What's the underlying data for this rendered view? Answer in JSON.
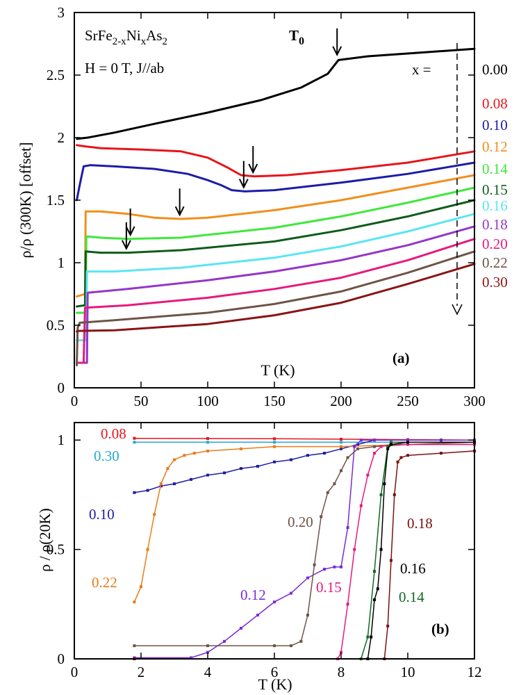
{
  "chart_data": [
    {
      "type": "line",
      "panel_label": "(a)",
      "title_lines": [
        "SrFe2-xNixAs2",
        "H = 0 T, J//ab"
      ],
      "compound": {
        "base": "SrFe",
        "sub1": "2-x",
        "mid": "Ni",
        "sub2": "x",
        "tail": "As",
        "sub3": "2"
      },
      "conditions": "H = 0 T, J//ab",
      "xlabel": "T (K)",
      "ylabel": "ρ/ρ (300K) [offset]",
      "xlim": [
        0,
        300
      ],
      "ylim": [
        0,
        3
      ],
      "xticks": [
        0,
        50,
        100,
        150,
        200,
        250,
        300
      ],
      "yticks": [
        0,
        0.5,
        1,
        1.5,
        2,
        2.5,
        3
      ],
      "ytick_labels": [
        "0",
        "0.5",
        "1",
        "1.5",
        "2",
        "2.5",
        "3"
      ],
      "legend_header": "x =",
      "transition_label": {
        "main": "T",
        "sub": "0"
      },
      "series": [
        {
          "name": "0.00",
          "color": "#000000",
          "x": [
            2,
            10,
            30,
            60,
            100,
            140,
            170,
            190,
            198,
            220,
            260,
            300
          ],
          "y": [
            1.99,
            2.0,
            2.04,
            2.11,
            2.2,
            2.3,
            2.4,
            2.51,
            2.62,
            2.65,
            2.68,
            2.71
          ]
        },
        {
          "name": "0.08",
          "color": "#e8141a",
          "x": [
            1.8,
            8,
            20,
            50,
            80,
            100,
            115,
            125,
            135,
            160,
            200,
            250,
            300
          ],
          "y": [
            1.94,
            1.93,
            1.915,
            1.905,
            1.89,
            1.84,
            1.76,
            1.7,
            1.69,
            1.7,
            1.74,
            1.8,
            1.89
          ]
        },
        {
          "name": "0.10",
          "color": "#1c1ca8",
          "x": [
            1.8,
            4,
            7,
            12,
            30,
            60,
            85,
            100,
            110,
            118,
            128,
            150,
            200,
            250,
            300
          ],
          "y": [
            1.5,
            1.62,
            1.77,
            1.78,
            1.77,
            1.75,
            1.71,
            1.66,
            1.62,
            1.58,
            1.57,
            1.58,
            1.64,
            1.71,
            1.8
          ]
        },
        {
          "name": "0.12",
          "color": "#f28e1c",
          "x": [
            1.8,
            8,
            8.5,
            20,
            40,
            60,
            80,
            100,
            150,
            200,
            250,
            300
          ],
          "y": [
            0.73,
            0.75,
            1.41,
            1.41,
            1.39,
            1.36,
            1.35,
            1.36,
            1.42,
            1.5,
            1.6,
            1.7
          ]
        },
        {
          "name": "0.14",
          "color": "#3ee83a",
          "x": [
            1.8,
            8.5,
            9.0,
            20,
            40,
            80,
            150,
            200,
            250,
            300
          ],
          "y": [
            0.6,
            0.6,
            1.21,
            1.2,
            1.19,
            1.2,
            1.28,
            1.37,
            1.48,
            1.6
          ]
        },
        {
          "name": "0.15",
          "color": "#0e5c1a",
          "x": [
            1.8,
            8,
            8.5,
            20,
            40,
            80,
            150,
            200,
            250,
            300
          ],
          "y": [
            0.65,
            0.66,
            1.09,
            1.08,
            1.08,
            1.1,
            1.17,
            1.26,
            1.37,
            1.5
          ]
        },
        {
          "name": "0.16",
          "color": "#5ae6f2",
          "x": [
            1.8,
            9.0,
            9.5,
            30,
            80,
            150,
            200,
            250,
            300
          ],
          "y": [
            0.38,
            0.38,
            0.93,
            0.93,
            0.96,
            1.04,
            1.13,
            1.25,
            1.39
          ]
        },
        {
          "name": "0.18",
          "color": "#9436c8",
          "x": [
            1.8,
            9.5,
            10,
            40,
            100,
            150,
            200,
            250,
            300
          ],
          "y": [
            0.2,
            0.2,
            0.76,
            0.79,
            0.86,
            0.93,
            1.02,
            1.14,
            1.29
          ]
        },
        {
          "name": "0.20",
          "color": "#e6197e",
          "x": [
            1.8,
            7,
            8,
            40,
            100,
            150,
            200,
            250,
            300
          ],
          "y": [
            0.2,
            0.2,
            0.64,
            0.66,
            0.72,
            0.79,
            0.88,
            1.02,
            1.19
          ]
        },
        {
          "name": "0.22",
          "color": "#6e5446",
          "x": [
            1.8,
            2.5,
            4,
            30,
            100,
            150,
            200,
            250,
            300
          ],
          "y": [
            0.18,
            0.48,
            0.52,
            0.54,
            0.6,
            0.67,
            0.77,
            0.92,
            1.09
          ]
        },
        {
          "name": "0.30",
          "color": "#8a1414",
          "x": [
            1.8,
            3,
            30,
            100,
            150,
            200,
            250,
            300
          ],
          "y": [
            0.45,
            0.455,
            0.46,
            0.51,
            0.58,
            0.68,
            0.83,
            0.99
          ]
        }
      ],
      "arrows": [
        {
          "x": 197,
          "y": 2.64
        },
        {
          "x": 134,
          "y": 1.7
        },
        {
          "x": 127,
          "y": 1.58
        },
        {
          "x": 79,
          "y": 1.36
        },
        {
          "x": 42,
          "y": 1.2
        },
        {
          "x": 39,
          "y": 1.09
        }
      ]
    },
    {
      "type": "line",
      "panel_label": "(b)",
      "xlabel": "T (K)",
      "ylabel": "ρ / ρ(20K)",
      "xlim": [
        0,
        12
      ],
      "ylim": [
        0,
        1.08
      ],
      "xticks": [
        0,
        2,
        4,
        6,
        8,
        10,
        12
      ],
      "yticks": [
        0,
        0.5,
        1
      ],
      "ytick_labels": [
        "0",
        "0.5",
        "1"
      ],
      "series": [
        {
          "name": "0.08",
          "color": "#e8141a",
          "x": [
            1.8,
            4,
            6,
            8,
            10,
            12
          ],
          "y": [
            1.008,
            1.007,
            1.006,
            1.004,
            1.002,
            1.0
          ]
        },
        {
          "name": "0.30",
          "color": "#22aad6",
          "x": [
            1.8,
            4,
            6,
            8,
            10,
            12
          ],
          "y": [
            0.99,
            0.99,
            0.99,
            0.99,
            0.99,
            0.99
          ]
        },
        {
          "name": "0.10",
          "color": "#1c1ca8",
          "x": [
            1.8,
            2.2,
            2.6,
            3,
            3.5,
            4,
            4.5,
            5,
            5.5,
            6,
            6.5,
            7,
            7.5,
            8,
            8.5,
            9,
            10,
            11,
            12
          ],
          "y": [
            0.76,
            0.77,
            0.79,
            0.8,
            0.82,
            0.84,
            0.85,
            0.87,
            0.88,
            0.9,
            0.91,
            0.93,
            0.94,
            0.96,
            0.98,
            1.0,
            1.0,
            1.0,
            1.0
          ]
        },
        {
          "name": "0.22",
          "color": "#ec7a18",
          "x": [
            1.8,
            2.0,
            2.2,
            2.4,
            2.6,
            2.8,
            3.0,
            3.3,
            3.6,
            4,
            5,
            6,
            8,
            10,
            12
          ],
          "y": [
            0.26,
            0.33,
            0.5,
            0.66,
            0.8,
            0.87,
            0.91,
            0.93,
            0.94,
            0.95,
            0.96,
            0.97,
            0.97,
            0.98,
            0.98
          ]
        },
        {
          "name": "0.12",
          "color": "#7a2ad8",
          "x": [
            1.8,
            3.5,
            4.0,
            4.5,
            5.0,
            5.5,
            6.0,
            6.5,
            7.0,
            7.5,
            7.8,
            8.0,
            8.2,
            8.4,
            8.6,
            9,
            10,
            12
          ],
          "y": [
            0.005,
            0.005,
            0.03,
            0.08,
            0.14,
            0.2,
            0.26,
            0.3,
            0.37,
            0.41,
            0.42,
            0.42,
            0.6,
            0.97,
            1.0,
            1.0,
            1.0,
            1.0
          ]
        },
        {
          "name": "0.20",
          "color": "#6e5446",
          "x": [
            1.8,
            4,
            6,
            6.5,
            6.8,
            7.0,
            7.2,
            7.4,
            7.6,
            7.8,
            8.0,
            8.2,
            8.5,
            9,
            10,
            12
          ],
          "y": [
            0.06,
            0.06,
            0.06,
            0.06,
            0.08,
            0.2,
            0.43,
            0.65,
            0.76,
            0.8,
            0.86,
            0.92,
            0.96,
            0.97,
            0.98,
            0.99
          ]
        },
        {
          "name": "0.15",
          "color": "#e6197e",
          "x": [
            1.8,
            7.9,
            8.0,
            8.2,
            8.4,
            8.6,
            8.8,
            9.0,
            9.2,
            9.5,
            10,
            12
          ],
          "y": [
            0.0,
            0.0,
            0.03,
            0.25,
            0.5,
            0.7,
            0.84,
            0.94,
            0.97,
            0.98,
            0.98,
            0.98
          ]
        },
        {
          "name": "0.14",
          "color": "#0e6a1e",
          "x": [
            1.8,
            8.6,
            8.8,
            9.0,
            9.2,
            9.4,
            9.5,
            10,
            12
          ],
          "y": [
            0.0,
            0.0,
            0.1,
            0.4,
            0.75,
            0.97,
            0.99,
            0.99,
            0.99
          ]
        },
        {
          "name": "0.16",
          "color": "#000000",
          "x": [
            1.8,
            8.8,
            8.9,
            9.0,
            9.1,
            9.2,
            9.3,
            9.4,
            9.5,
            10,
            12
          ],
          "y": [
            0.0,
            0.0,
            0.1,
            0.27,
            0.32,
            0.5,
            0.8,
            0.96,
            0.98,
            0.99,
            0.99
          ]
        },
        {
          "name": "0.18",
          "color": "#7a1010",
          "x": [
            1.8,
            9.3,
            9.4,
            9.5,
            9.6,
            9.7,
            9.8,
            10,
            11,
            12
          ],
          "y": [
            0.0,
            0.0,
            0.15,
            0.45,
            0.75,
            0.9,
            0.92,
            0.93,
            0.94,
            0.95
          ]
        }
      ]
    }
  ]
}
